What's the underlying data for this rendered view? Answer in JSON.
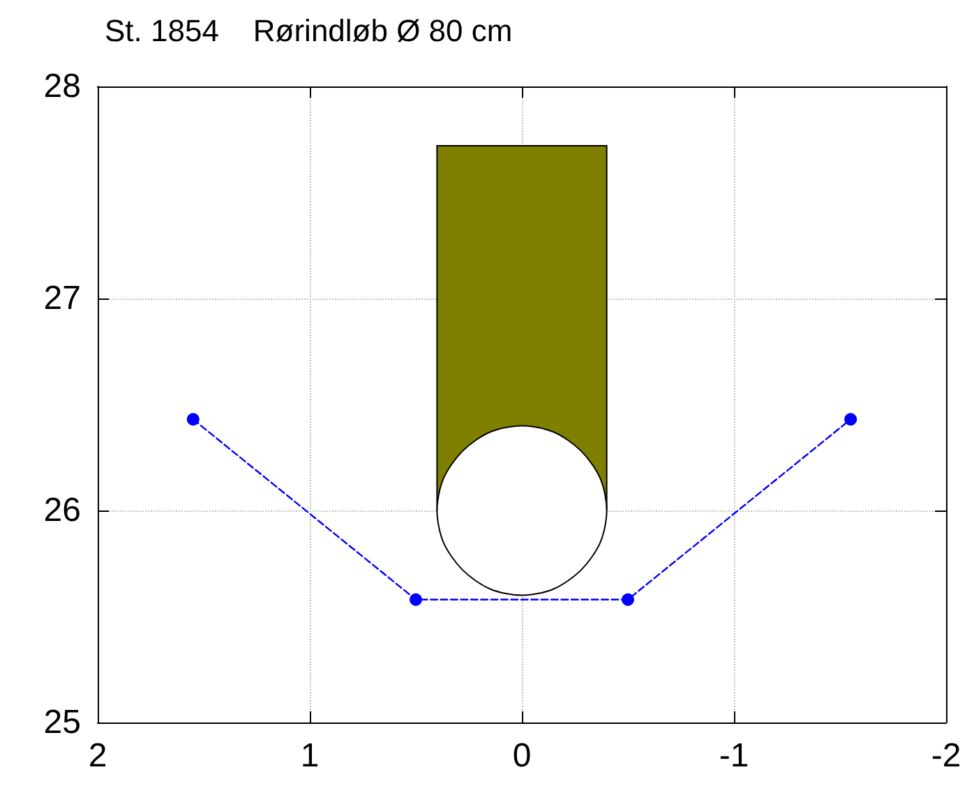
{
  "chart_data": {
    "type": "line",
    "title": "St. 1854    Rørindløb Ø 80 cm",
    "series": [
      {
        "type": "area",
        "color": "#808000",
        "x": [
          0.4,
          0.4,
          -0.4,
          -0.4
        ],
        "values": [
          26,
          27.72,
          27.72,
          26
        ]
      },
      {
        "type": "area",
        "color": "#ffffff",
        "x": [
          0.4,
          0.37,
          0.28,
          0.15,
          0,
          -0.15,
          -0.28,
          -0.37,
          -0.4,
          -0.37,
          -0.28,
          -0.15,
          0,
          0.15,
          0.28,
          0.37
        ],
        "values": [
          26,
          26.15,
          26.28,
          26.37,
          26.4,
          26.37,
          26.28,
          26.15,
          26,
          25.85,
          25.72,
          25.63,
          25.6,
          25.63,
          25.72,
          25.85
        ]
      },
      {
        "color": "#0000ff",
        "x": [
          1.55,
          0.5,
          -0.5,
          -1.55
        ],
        "values": [
          26.43,
          25.58,
          25.58,
          26.43
        ],
        "marker": "circle",
        "line_style": "dashed"
      }
    ],
    "xlim": [
      2,
      -2
    ],
    "xticks": [
      2,
      1,
      0,
      -1,
      -2
    ],
    "ylim": [
      25,
      28
    ],
    "yticks": [
      25,
      26,
      27,
      28
    ],
    "grid": true
  }
}
